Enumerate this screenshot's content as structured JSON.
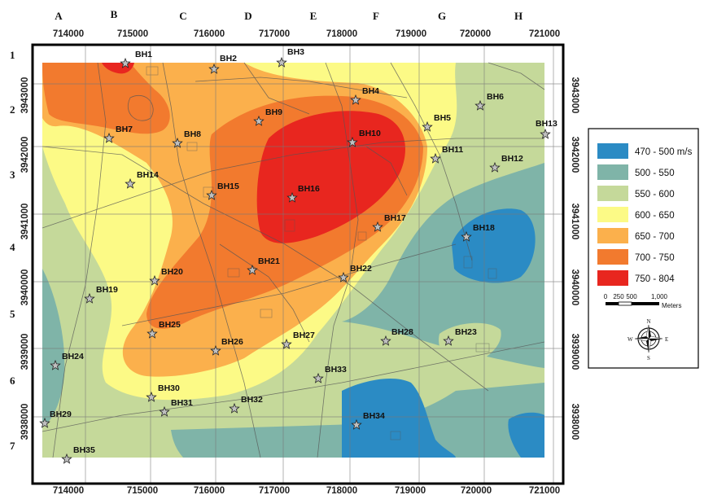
{
  "map": {
    "x_axis": {
      "values": [
        "714000",
        "715000",
        "716000",
        "717000",
        "718000",
        "719000",
        "720000",
        "721000"
      ]
    },
    "y_axis": {
      "values": [
        "3943000",
        "3942000",
        "3941000",
        "3940000",
        "3939000",
        "3938000"
      ]
    },
    "column_letters": [
      "A",
      "B",
      "C",
      "D",
      "E",
      "F",
      "G",
      "H"
    ],
    "row_numbers": [
      "1",
      "2",
      "3",
      "4",
      "5",
      "6",
      "7"
    ],
    "boreholes": [
      "BH1",
      "BH2",
      "BH3",
      "BH4",
      "BH5",
      "BH6",
      "BH7",
      "BH8",
      "BH9",
      "BH10",
      "BH11",
      "BH12",
      "BH13",
      "BH14",
      "BH15",
      "BH16",
      "BH17",
      "BH18",
      "BH19",
      "BH20",
      "BH21",
      "BH22",
      "BH23",
      "BH24",
      "BH25",
      "BH26",
      "BH27",
      "BH28",
      "BH29",
      "BH30",
      "BH31",
      "BH32",
      "BH33",
      "BH34",
      "BH35"
    ]
  },
  "legend": {
    "classes": [
      {
        "label": "470 - 500 m/s",
        "color": "#2b8bc4"
      },
      {
        "label": "500 - 550",
        "color": "#7fb4a8"
      },
      {
        "label": "550 - 600",
        "color": "#c5d99a"
      },
      {
        "label": "600 - 650",
        "color": "#fcfa86"
      },
      {
        "label": "650 - 700",
        "color": "#fbb04c"
      },
      {
        "label": "700 - 750",
        "color": "#f27a2e"
      },
      {
        "label": "750 - 804",
        "color": "#e8261f"
      }
    ],
    "scale": {
      "ticks": [
        "0",
        "250",
        "500",
        "1,000"
      ],
      "unit": "Meters"
    },
    "compass": {
      "n": "N",
      "s": "S",
      "e": "E",
      "w": "W"
    }
  }
}
